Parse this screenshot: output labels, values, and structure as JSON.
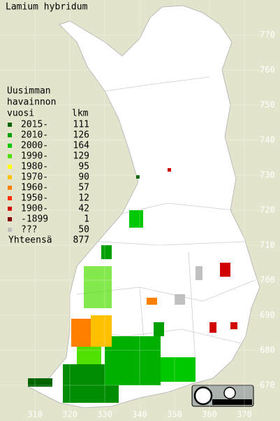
{
  "map": {
    "title": "Lamium hybridum",
    "legend": {
      "heading": [
        "Uusimman",
        "havainnon",
        "vuosi"
      ],
      "count_heading": "lkm",
      "rows": [
        {
          "label": "2015-",
          "count": 111,
          "color": "#006400"
        },
        {
          "label": "2010-",
          "count": 126,
          "color": "#00a000"
        },
        {
          "label": "2000-",
          "count": 164,
          "color": "#00c800"
        },
        {
          "label": "1990-",
          "count": 129,
          "color": "#50e000"
        },
        {
          "label": "1980-",
          "count": 95,
          "color": "#ffff00"
        },
        {
          "label": "1970-",
          "count": 90,
          "color": "#ffc000"
        },
        {
          "label": "1960-",
          "count": 57,
          "color": "#ff8000"
        },
        {
          "label": "1950-",
          "count": 12,
          "color": "#ff3000"
        },
        {
          "label": "1900-",
          "count": 42,
          "color": "#d00000"
        },
        {
          "label": "-1899",
          "count": 1,
          "color": "#800000"
        },
        {
          "label": "???",
          "count": 50,
          "color": "#c0c0c0"
        }
      ],
      "total_label": "Yhteensä",
      "total": 877
    },
    "x_ticks": [
      310,
      320,
      330,
      340,
      350,
      360,
      370
    ],
    "y_ticks": [
      670,
      680,
      690,
      700,
      710,
      720,
      730,
      740,
      750,
      760,
      770
    ]
  }
}
